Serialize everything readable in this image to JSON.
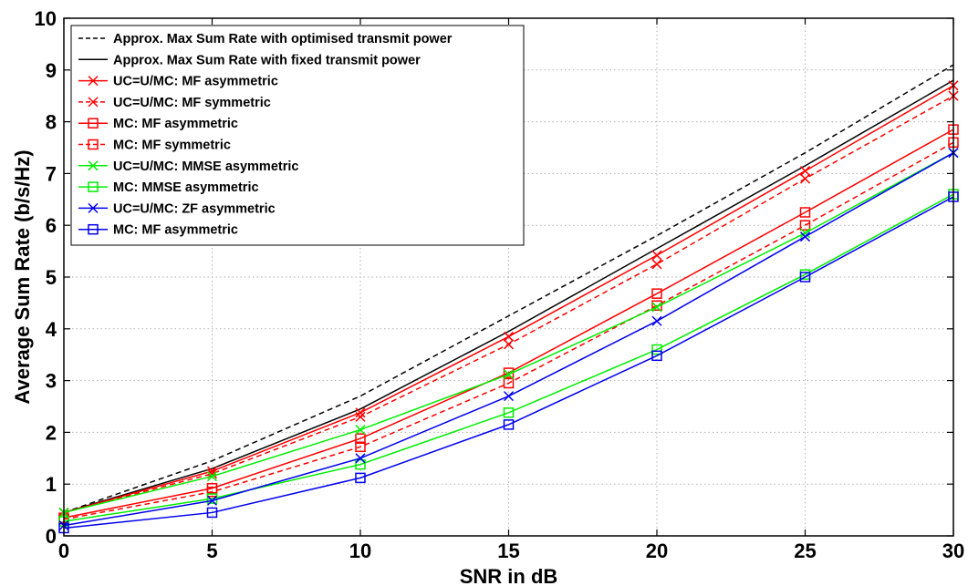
{
  "chart_data": {
    "type": "line",
    "title": "",
    "xlabel": "SNR in dB",
    "ylabel": "Average Sum Rate (b/s/Hz)",
    "xlim": [
      0,
      30
    ],
    "ylim": [
      0,
      10
    ],
    "xticks": [
      "0",
      "5",
      "10",
      "15",
      "20",
      "25",
      "30"
    ],
    "yticks": [
      "0",
      "1",
      "2",
      "3",
      "4",
      "5",
      "6",
      "7",
      "8",
      "9",
      "10"
    ],
    "grid": true,
    "legend_position": "top-left",
    "x": [
      0,
      5,
      10,
      15,
      20,
      25,
      30
    ],
    "series": [
      {
        "name": "Approx. Max Sum Rate with optimised transmit power",
        "color": "#000000",
        "dash": "dashed",
        "marker": "none",
        "values": [
          0.45,
          1.45,
          2.7,
          4.25,
          5.8,
          7.4,
          9.1
        ]
      },
      {
        "name": "Approx. Max Sum Rate with fixed transmit power",
        "color": "#000000",
        "dash": "solid",
        "marker": "none",
        "values": [
          0.45,
          1.3,
          2.45,
          3.95,
          5.55,
          7.15,
          8.8
        ]
      },
      {
        "name": "UC=U/MC: MF asymmetric",
        "color": "#ff0000",
        "dash": "solid",
        "marker": "x",
        "values": [
          0.45,
          1.25,
          2.38,
          3.85,
          5.42,
          7.05,
          8.7
        ]
      },
      {
        "name": "UC=U/MC: MF symmetric",
        "color": "#ff0000",
        "dash": "dashed",
        "marker": "x",
        "values": [
          0.45,
          1.2,
          2.3,
          3.7,
          5.25,
          6.9,
          8.5
        ]
      },
      {
        "name": "MC: MF asymmetric",
        "color": "#ff0000",
        "dash": "solid",
        "marker": "square",
        "values": [
          0.35,
          0.92,
          1.88,
          3.15,
          4.68,
          6.25,
          7.85
        ]
      },
      {
        "name": "MC: MF symmetric",
        "color": "#ff0000",
        "dash": "dashed",
        "marker": "square",
        "values": [
          0.32,
          0.85,
          1.72,
          2.95,
          4.45,
          6.0,
          7.6
        ]
      },
      {
        "name": "UC=U/MC: MMSE asymmetric",
        "color": "#00ee00",
        "dash": "solid",
        "marker": "x",
        "values": [
          0.45,
          1.15,
          2.05,
          3.12,
          4.42,
          5.85,
          7.4
        ]
      },
      {
        "name": "MC: MMSE asymmetric",
        "color": "#00ee00",
        "dash": "solid",
        "marker": "square",
        "values": [
          0.28,
          0.72,
          1.38,
          2.38,
          3.6,
          5.05,
          6.6
        ]
      },
      {
        "name": "UC=U/MC: ZF asymmetric",
        "color": "#0000ee",
        "dash": "solid",
        "marker": "x",
        "values": [
          0.2,
          0.68,
          1.5,
          2.7,
          4.15,
          5.78,
          7.4
        ]
      },
      {
        "name": "MC: MF asymmetric",
        "color": "#0000ee",
        "dash": "solid",
        "marker": "square",
        "values": [
          0.15,
          0.45,
          1.12,
          2.15,
          3.48,
          5.0,
          6.55
        ]
      }
    ]
  }
}
